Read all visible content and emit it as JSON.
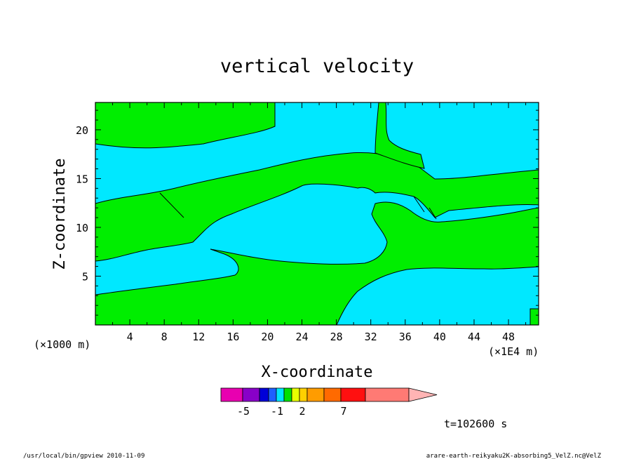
{
  "chart_data": {
    "type": "contour",
    "title": "vertical velocity",
    "xlabel": "X-coordinate",
    "ylabel": "Z-coordinate",
    "x_unit_left": "(×1000 m)",
    "x_unit_right": "(×1E4 m)",
    "xlim": [
      0,
      51.5
    ],
    "ylim": [
      0,
      22.8
    ],
    "xticks": [
      "4",
      "8",
      "12",
      "16",
      "20",
      "24",
      "28",
      "32",
      "36",
      "40",
      "44",
      "48"
    ],
    "yticks": [
      "5",
      "10",
      "15",
      "20"
    ],
    "colorbar": {
      "colors": [
        "#e800b0",
        "#8800c8",
        "#0000d8",
        "#1e60ff",
        "#00e6ff",
        "#00e000",
        "#e8ff00",
        "#ffd000",
        "#ff9c00",
        "#ff6a00",
        "#ff1010",
        "#ff7a74",
        "#ffb4b4"
      ],
      "labels": [
        "-5",
        "-1",
        "2",
        "7"
      ]
    },
    "colors": {
      "positive": "#00ee00",
      "negative": "#00e8ff"
    },
    "time_label": "t=102600 s"
  },
  "footer": {
    "left": "/usr/local/bin/gpview   2010-11-09",
    "right": "arare-earth-reikyaku2K-absorbing5_VelZ.nc@VelZ"
  }
}
